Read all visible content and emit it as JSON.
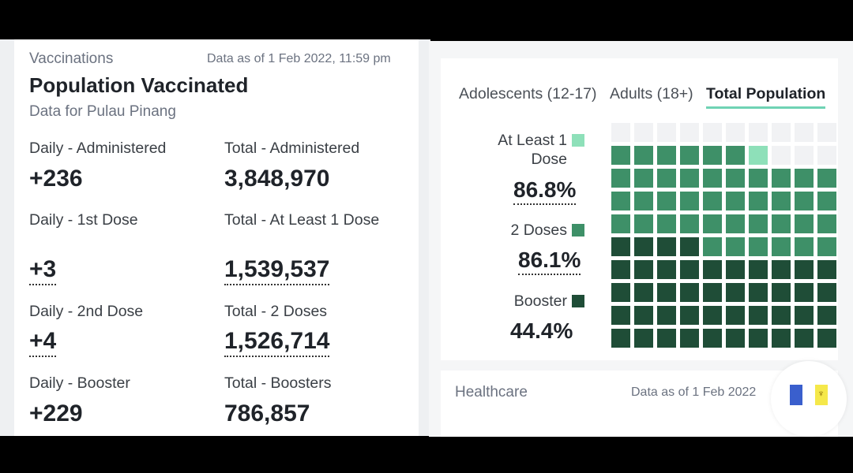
{
  "vaccinations": {
    "section": "Vaccinations",
    "date": "Data as of 1 Feb 2022, 11:59 pm",
    "title": "Population Vaccinated",
    "subtitle": "Data for Pulau Pinang",
    "stats": [
      {
        "label": "Daily - Administered",
        "value": "+236"
      },
      {
        "label": "Total - Administered",
        "value": "3,848,970"
      },
      {
        "label": "Daily - 1st Dose",
        "value": "+3"
      },
      {
        "label": "Total - At Least 1 Dose",
        "value": "1,539,537"
      },
      {
        "label": "Daily - 2nd Dose",
        "value": "+4"
      },
      {
        "label": "Total - 2 Doses",
        "value": "1,526,714"
      },
      {
        "label": "Daily - Booster",
        "value": "+229"
      },
      {
        "label": "Total - Boosters",
        "value": "786,857"
      }
    ]
  },
  "tabs": {
    "adolescents": "Adolescents (12-17)",
    "adults": "Adults (18+)",
    "total": "Total Population",
    "active": "total"
  },
  "legend": {
    "at_least_1": {
      "label": "At Least 1 Dose",
      "pct": "86.8%",
      "color": "#8ee0b9"
    },
    "two_doses": {
      "label": "2 Doses",
      "pct": "86.1%",
      "color": "#3e9068"
    },
    "booster": {
      "label": "Booster",
      "pct": "44.4%",
      "color": "#1f4d37"
    }
  },
  "waffle": {
    "filled_counts": {
      "booster": 44,
      "two_doses": 86,
      "at_least_1": 87
    },
    "empty_color": "#f1f2f4"
  },
  "healthcare": {
    "title": "Healthcare",
    "date": "Data as of 1 Feb 2022"
  },
  "flag_icon": "penang-flag-icon"
}
